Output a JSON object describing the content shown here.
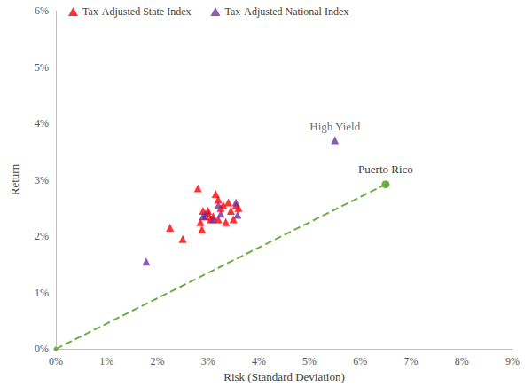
{
  "chart_data": {
    "type": "scatter",
    "xlabel": "Risk (Standard Deviation)",
    "ylabel": "Return",
    "xlim": [
      0,
      9
    ],
    "ylim": [
      0,
      6
    ],
    "xticks": [
      {
        "value": 0,
        "label": "0%"
      },
      {
        "value": 1,
        "label": "1%"
      },
      {
        "value": 2,
        "label": "2%"
      },
      {
        "value": 3,
        "label": "3%"
      },
      {
        "value": 4,
        "label": "4%"
      },
      {
        "value": 5,
        "label": "5%"
      },
      {
        "value": 6,
        "label": "6%"
      },
      {
        "value": 7,
        "label": "7%"
      },
      {
        "value": 8,
        "label": "8%"
      },
      {
        "value": 9,
        "label": "9%"
      }
    ],
    "yticks": [
      {
        "value": 0,
        "label": "0%"
      },
      {
        "value": 1,
        "label": "1%"
      },
      {
        "value": 2,
        "label": "2%"
      },
      {
        "value": 3,
        "label": "3%"
      },
      {
        "value": 4,
        "label": "4%"
      },
      {
        "value": 5,
        "label": "5%"
      },
      {
        "value": 6,
        "label": "6%"
      }
    ],
    "grid": false,
    "legend": "top",
    "series": [
      {
        "name": "Tax-Adjusted State Index",
        "color": "#ff0000",
        "marker": "triangle",
        "x": [
          2.8,
          2.25,
          2.5,
          2.85,
          2.88,
          2.9,
          2.95,
          3.0,
          3.05,
          3.1,
          3.15,
          3.2,
          3.2,
          3.25,
          3.3,
          3.35,
          3.4,
          3.45,
          3.5,
          3.6,
          3.55,
          3.0
        ],
        "y": [
          2.85,
          2.15,
          1.95,
          2.25,
          2.12,
          2.45,
          2.35,
          2.4,
          2.3,
          2.35,
          2.75,
          2.65,
          2.3,
          2.5,
          2.55,
          2.25,
          2.6,
          2.45,
          2.3,
          2.5,
          2.55,
          2.45
        ]
      },
      {
        "name": "Tax-Adjusted National Index",
        "color": "#7030a0",
        "marker": "triangle",
        "x": [
          1.78,
          5.5,
          2.9,
          3.2,
          3.25,
          3.55,
          3.58,
          3.1,
          2.95
        ],
        "y": [
          1.55,
          3.7,
          2.35,
          2.55,
          2.4,
          2.6,
          2.38,
          2.3,
          2.4
        ]
      },
      {
        "name": "Puerto Rico",
        "color": "#70ad47",
        "marker": "circle",
        "type": "line",
        "line_style": "dashed",
        "x": [
          0,
          6.5
        ],
        "y": [
          0,
          2.92
        ]
      }
    ],
    "annotations": [
      {
        "text": "High Yield",
        "x": 5.5,
        "y": 3.7
      }
    ]
  }
}
